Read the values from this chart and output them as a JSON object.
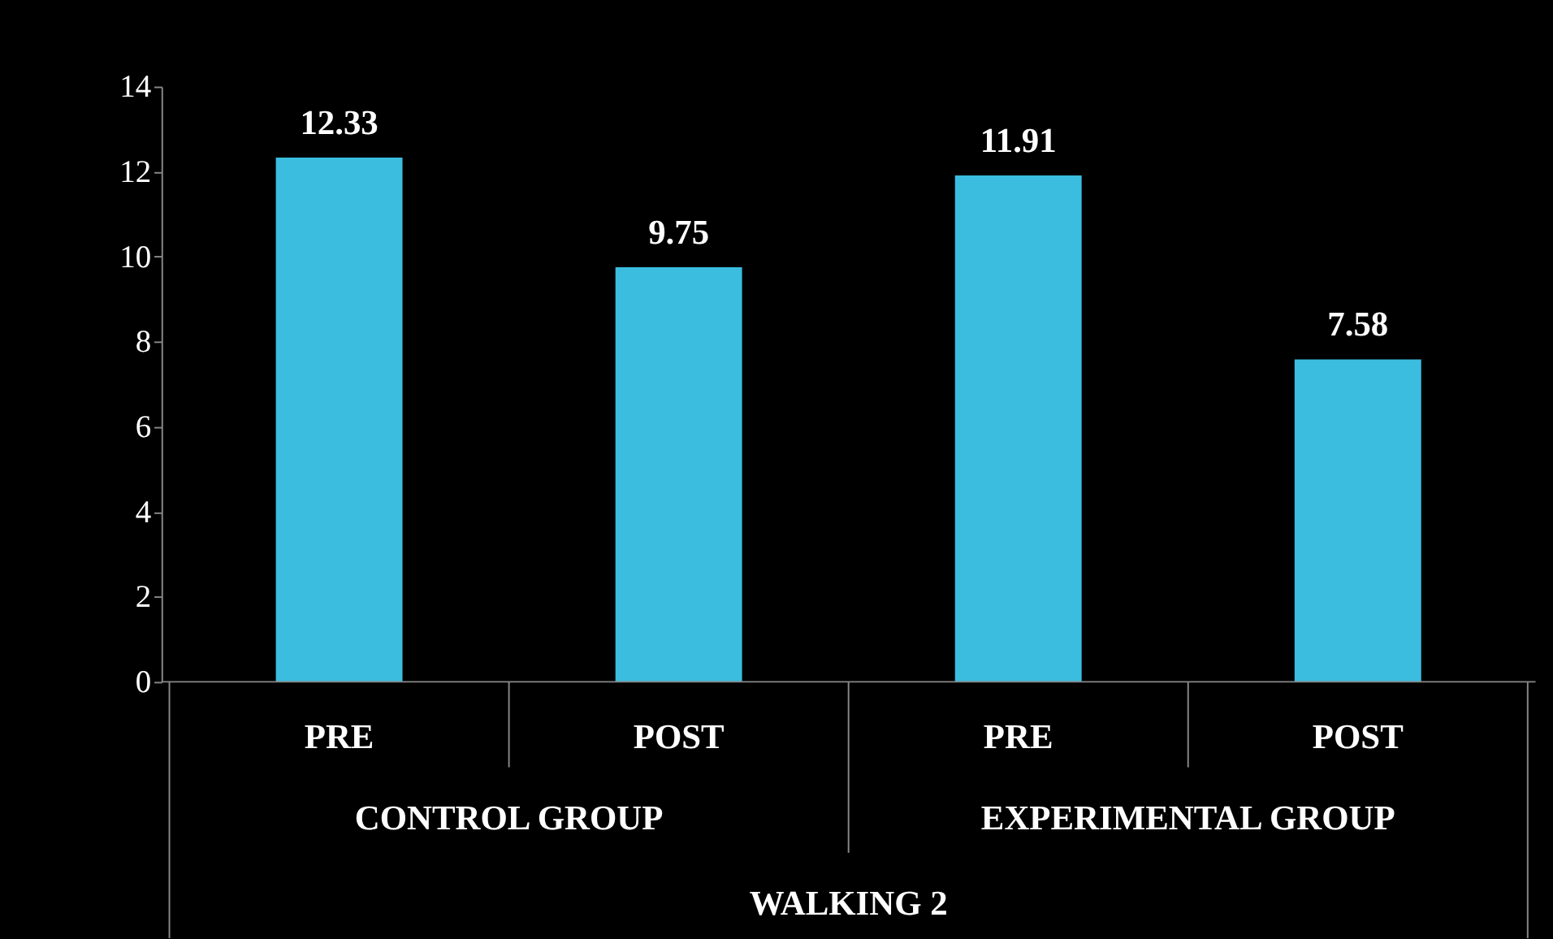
{
  "chart_data": {
    "type": "bar",
    "categories": [
      "PRE",
      "POST",
      "PRE",
      "POST"
    ],
    "values": [
      12.33,
      9.75,
      11.91,
      7.58
    ],
    "color": "#3bbde0",
    "ylim": [
      0,
      14
    ],
    "yticks": [
      0,
      2,
      4,
      6,
      8,
      10,
      12,
      14
    ],
    "data_labels": true,
    "grid": false,
    "xlabel": "WALKING 2",
    "annotations": [
      "CONTROL GROUP",
      "EXPERIMENTAL GROUP"
    ]
  }
}
